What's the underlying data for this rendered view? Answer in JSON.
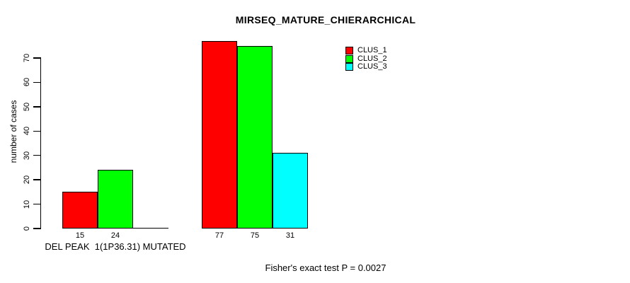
{
  "chart_data": {
    "type": "bar",
    "title": "MIRSEQ_MATURE_CHIERARCHICAL",
    "ylabel": "number of cases",
    "categories": [
      "DEL PEAK  1(1P36.31) MUTATED",
      ""
    ],
    "series": [
      {
        "name": "CLUS_1",
        "color": "#ff0000",
        "values": [
          15,
          77
        ]
      },
      {
        "name": "CLUS_2",
        "color": "#00ff00",
        "values": [
          24,
          75
        ]
      },
      {
        "name": "CLUS_3",
        "color": "#00ffff",
        "values": [
          0,
          31
        ]
      }
    ],
    "bar_value_labels": [
      [
        "15",
        "24",
        ""
      ],
      [
        "77",
        "75",
        "31"
      ]
    ],
    "yticks": [
      0,
      10,
      20,
      30,
      40,
      50,
      60,
      70
    ],
    "ylim": [
      0,
      70
    ],
    "grid": false,
    "legend": {
      "position": "top-right",
      "entries": [
        "CLUS_1",
        "CLUS_2",
        "CLUS_3"
      ]
    },
    "annotation": "Fisher's exact test P = 0.0027",
    "axis_color": "#000000",
    "background_color": "#ffffff"
  }
}
